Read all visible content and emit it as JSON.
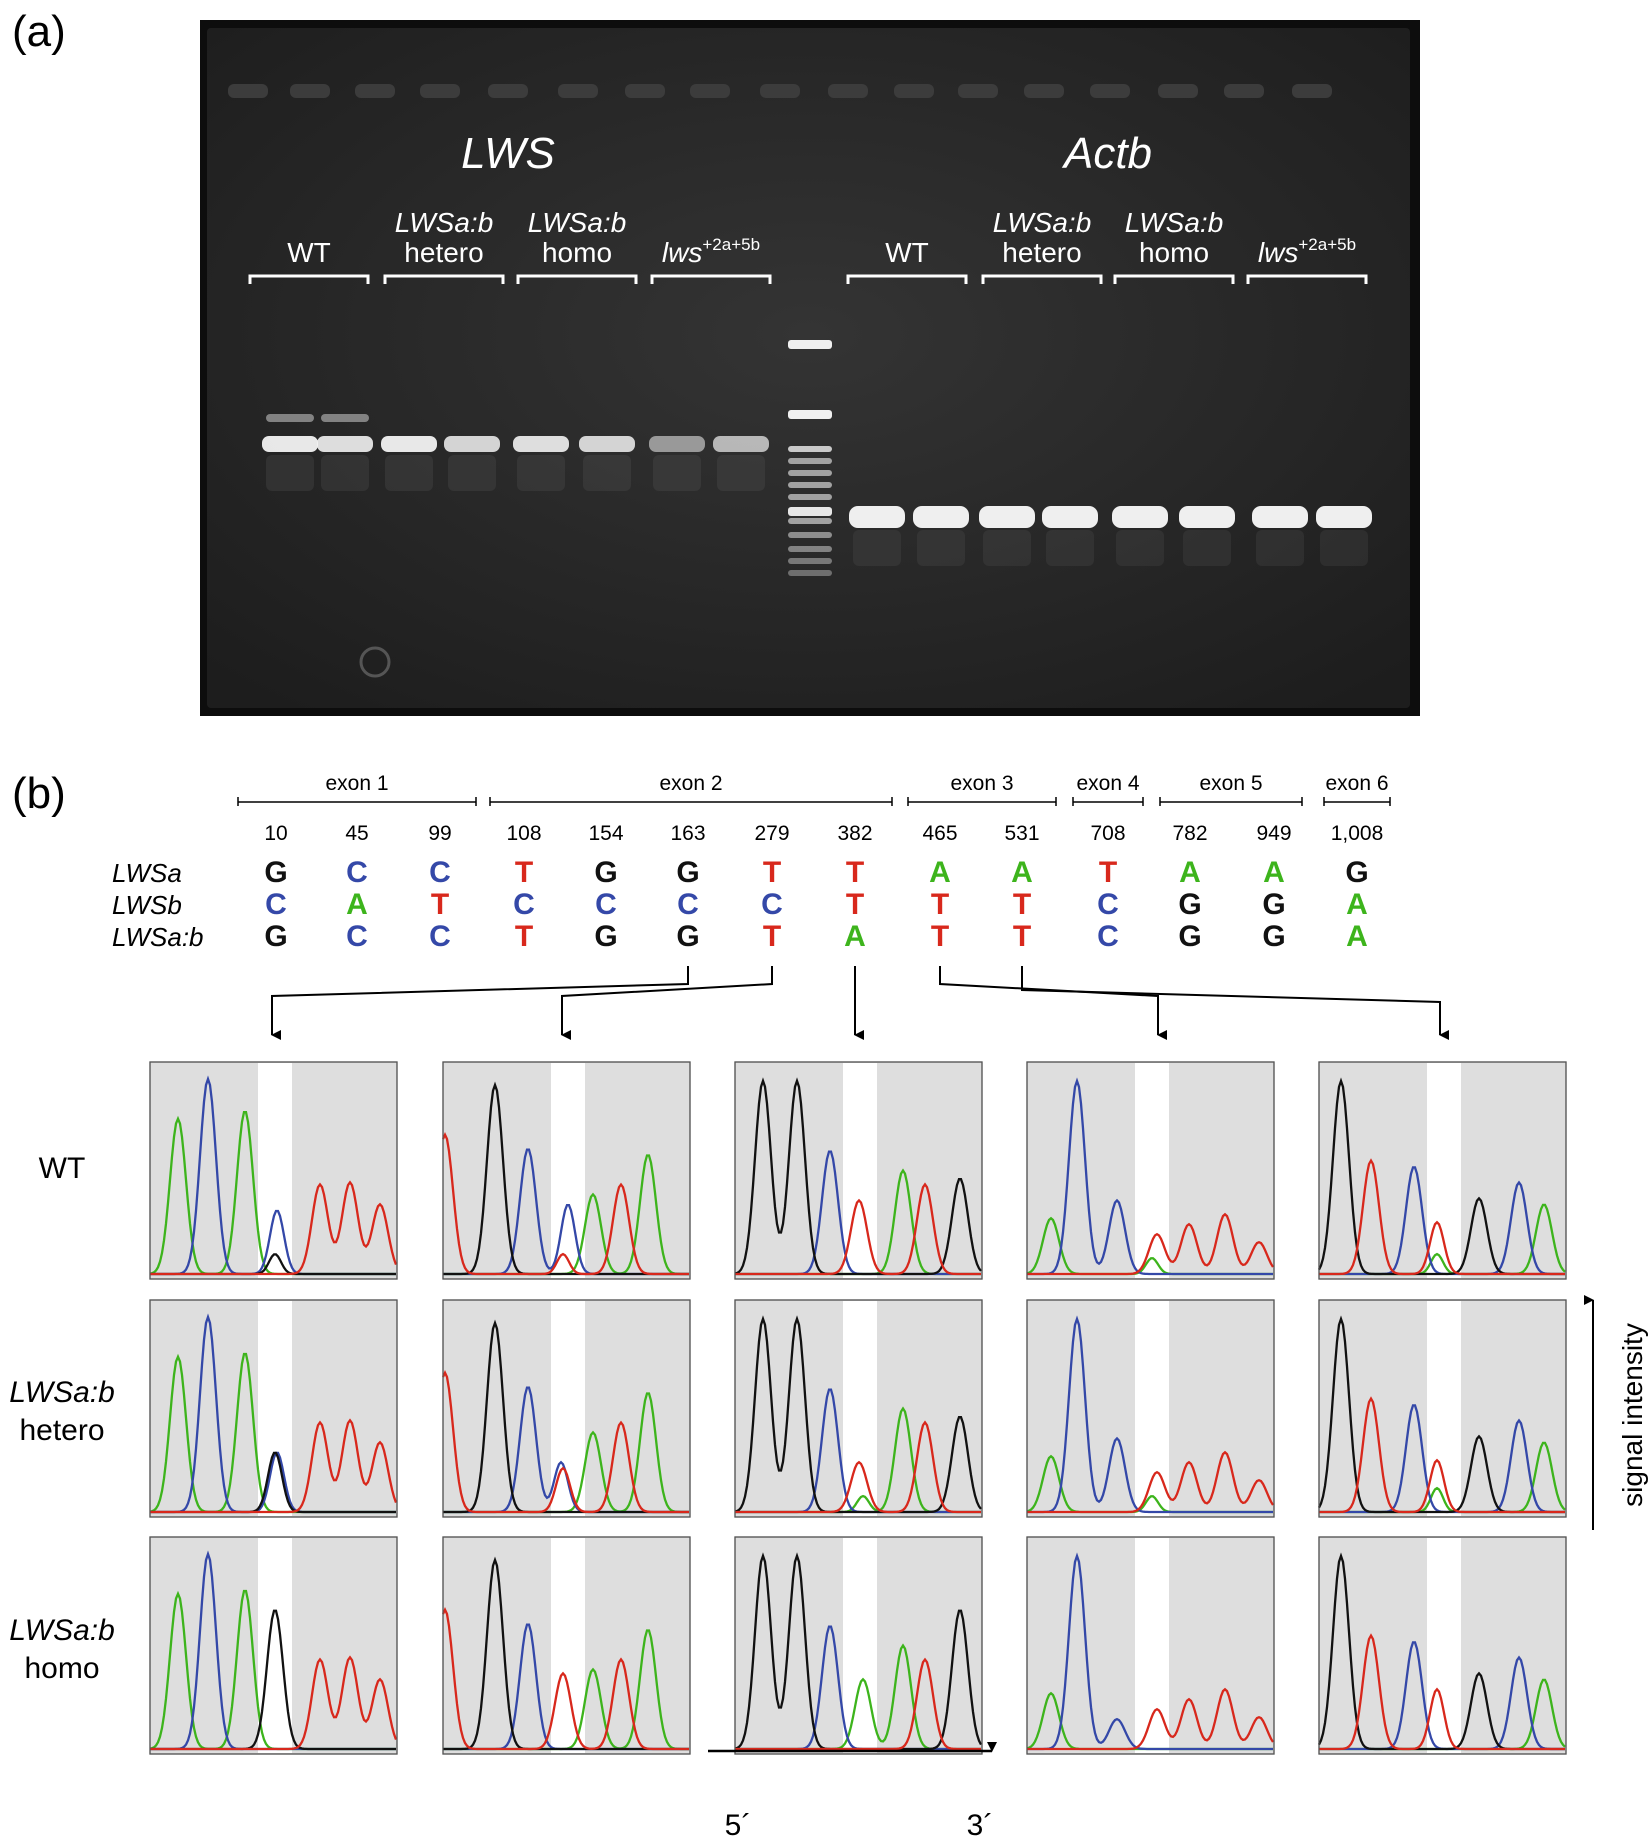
{
  "panel_a": {
    "label": "(a)",
    "gene_lws": "LWS",
    "gene_actb": "Actb",
    "groups": [
      {
        "line1": "",
        "line2": "WT"
      },
      {
        "line1": "LWSa:b",
        "line2": "hetero"
      },
      {
        "line1": "LWSa:b",
        "line2": "homo"
      },
      {
        "line1": "lws",
        "sup": "+2a+5b"
      }
    ]
  },
  "panel_b": {
    "label": "(b)",
    "exons": [
      "exon 1",
      "exon 2",
      "exon 3",
      "exon 4",
      "exon 5",
      "exon 6"
    ],
    "positions": [
      "10",
      "45",
      "99",
      "108",
      "154",
      "163",
      "279",
      "382",
      "465",
      "531",
      "708",
      "782",
      "949",
      "1,008"
    ],
    "rows": [
      {
        "name": "LWSa",
        "bases": [
          "G",
          "C",
          "C",
          "T",
          "G",
          "G",
          "T",
          "T",
          "A",
          "A",
          "T",
          "A",
          "A",
          "G"
        ]
      },
      {
        "name": "LWSb",
        "bases": [
          "C",
          "A",
          "T",
          "C",
          "C",
          "C",
          "C",
          "T",
          "T",
          "T",
          "C",
          "G",
          "G",
          "A"
        ]
      },
      {
        "name": "LWSa:b",
        "bases": [
          "G",
          "C",
          "C",
          "T",
          "G",
          "G",
          "T",
          "A",
          "T",
          "T",
          "C",
          "G",
          "G",
          "A"
        ]
      }
    ],
    "genotypes": [
      {
        "line1": "WT",
        "line2": ""
      },
      {
        "line1": "LWSa:b",
        "line2": "hetero"
      },
      {
        "line1": "LWSa:b",
        "line2": "homo"
      }
    ],
    "axis_label": "signal intensity",
    "direction_start": "5´",
    "direction_end": "3´"
  },
  "colors": {
    "A": "#3db41c",
    "C": "#3448a8",
    "G": "#111111",
    "T": "#d8281c",
    "panel_bg": "#dedede",
    "gel_bg": "#2a2a2a"
  }
}
